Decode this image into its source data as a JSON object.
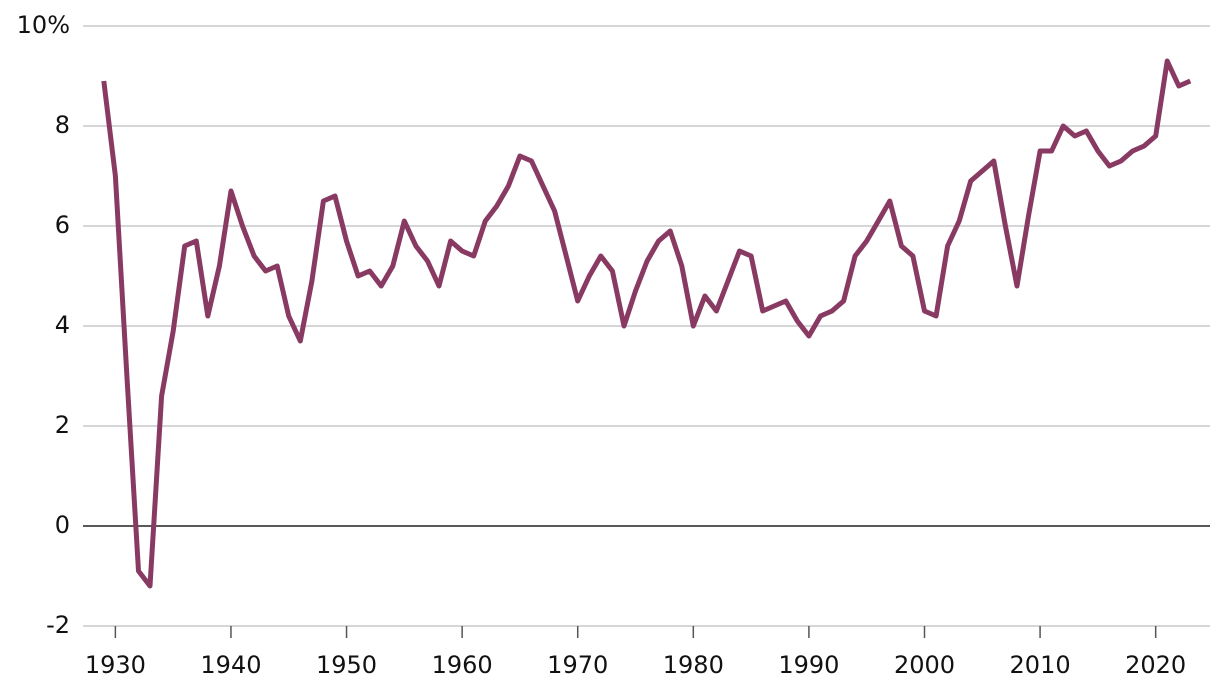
{
  "chart_data": {
    "type": "line",
    "x": [
      1929,
      1930,
      1931,
      1932,
      1933,
      1934,
      1935,
      1936,
      1937,
      1938,
      1939,
      1940,
      1941,
      1942,
      1943,
      1944,
      1945,
      1946,
      1947,
      1948,
      1949,
      1950,
      1951,
      1952,
      1953,
      1954,
      1955,
      1956,
      1957,
      1958,
      1959,
      1960,
      1961,
      1962,
      1963,
      1964,
      1965,
      1966,
      1967,
      1968,
      1969,
      1970,
      1971,
      1972,
      1973,
      1974,
      1975,
      1976,
      1977,
      1978,
      1979,
      1980,
      1981,
      1982,
      1983,
      1984,
      1985,
      1986,
      1987,
      1988,
      1989,
      1990,
      1991,
      1992,
      1993,
      1994,
      1995,
      1996,
      1997,
      1998,
      1999,
      2000,
      2001,
      2002,
      2003,
      2004,
      2005,
      2006,
      2007,
      2008,
      2009,
      2010,
      2011,
      2012,
      2013,
      2014,
      2015,
      2016,
      2017,
      2018,
      2019,
      2020,
      2021,
      2022,
      2023
    ],
    "values": [
      8.9,
      7.0,
      3.0,
      -0.9,
      -1.2,
      2.6,
      3.9,
      5.6,
      5.7,
      4.2,
      5.2,
      6.7,
      6.0,
      5.4,
      5.1,
      5.2,
      4.2,
      3.7,
      4.9,
      6.5,
      6.6,
      5.7,
      5.0,
      5.1,
      4.8,
      5.2,
      6.1,
      5.6,
      5.3,
      4.8,
      5.7,
      5.5,
      5.4,
      6.1,
      6.4,
      6.8,
      7.4,
      7.3,
      6.8,
      6.3,
      5.4,
      4.5,
      5.0,
      5.4,
      5.1,
      4.0,
      4.7,
      5.3,
      5.7,
      5.9,
      5.2,
      4.0,
      4.6,
      4.3,
      4.9,
      5.5,
      5.4,
      4.3,
      4.4,
      4.5,
      4.1,
      3.8,
      4.2,
      4.3,
      4.5,
      5.4,
      5.7,
      6.1,
      6.5,
      5.6,
      5.4,
      4.3,
      4.2,
      5.6,
      6.1,
      6.9,
      7.1,
      7.3,
      6.0,
      4.8,
      6.2,
      7.5,
      7.5,
      8.0,
      7.8,
      7.9,
      7.5,
      7.2,
      7.3,
      7.5,
      7.6,
      7.8,
      9.3,
      8.8,
      8.9
    ],
    "color": "#893a62",
    "xlim": [
      1927.2,
      2024.7
    ],
    "xticks": [
      1930,
      1940,
      1950,
      1960,
      1970,
      1980,
      1990,
      2000,
      2010,
      2020
    ],
    "ylim": [
      -2,
      10
    ],
    "yticks": [
      -2,
      0,
      2,
      4,
      6,
      8,
      {
        "value": 10,
        "label": "10%"
      }
    ],
    "grid": true
  }
}
